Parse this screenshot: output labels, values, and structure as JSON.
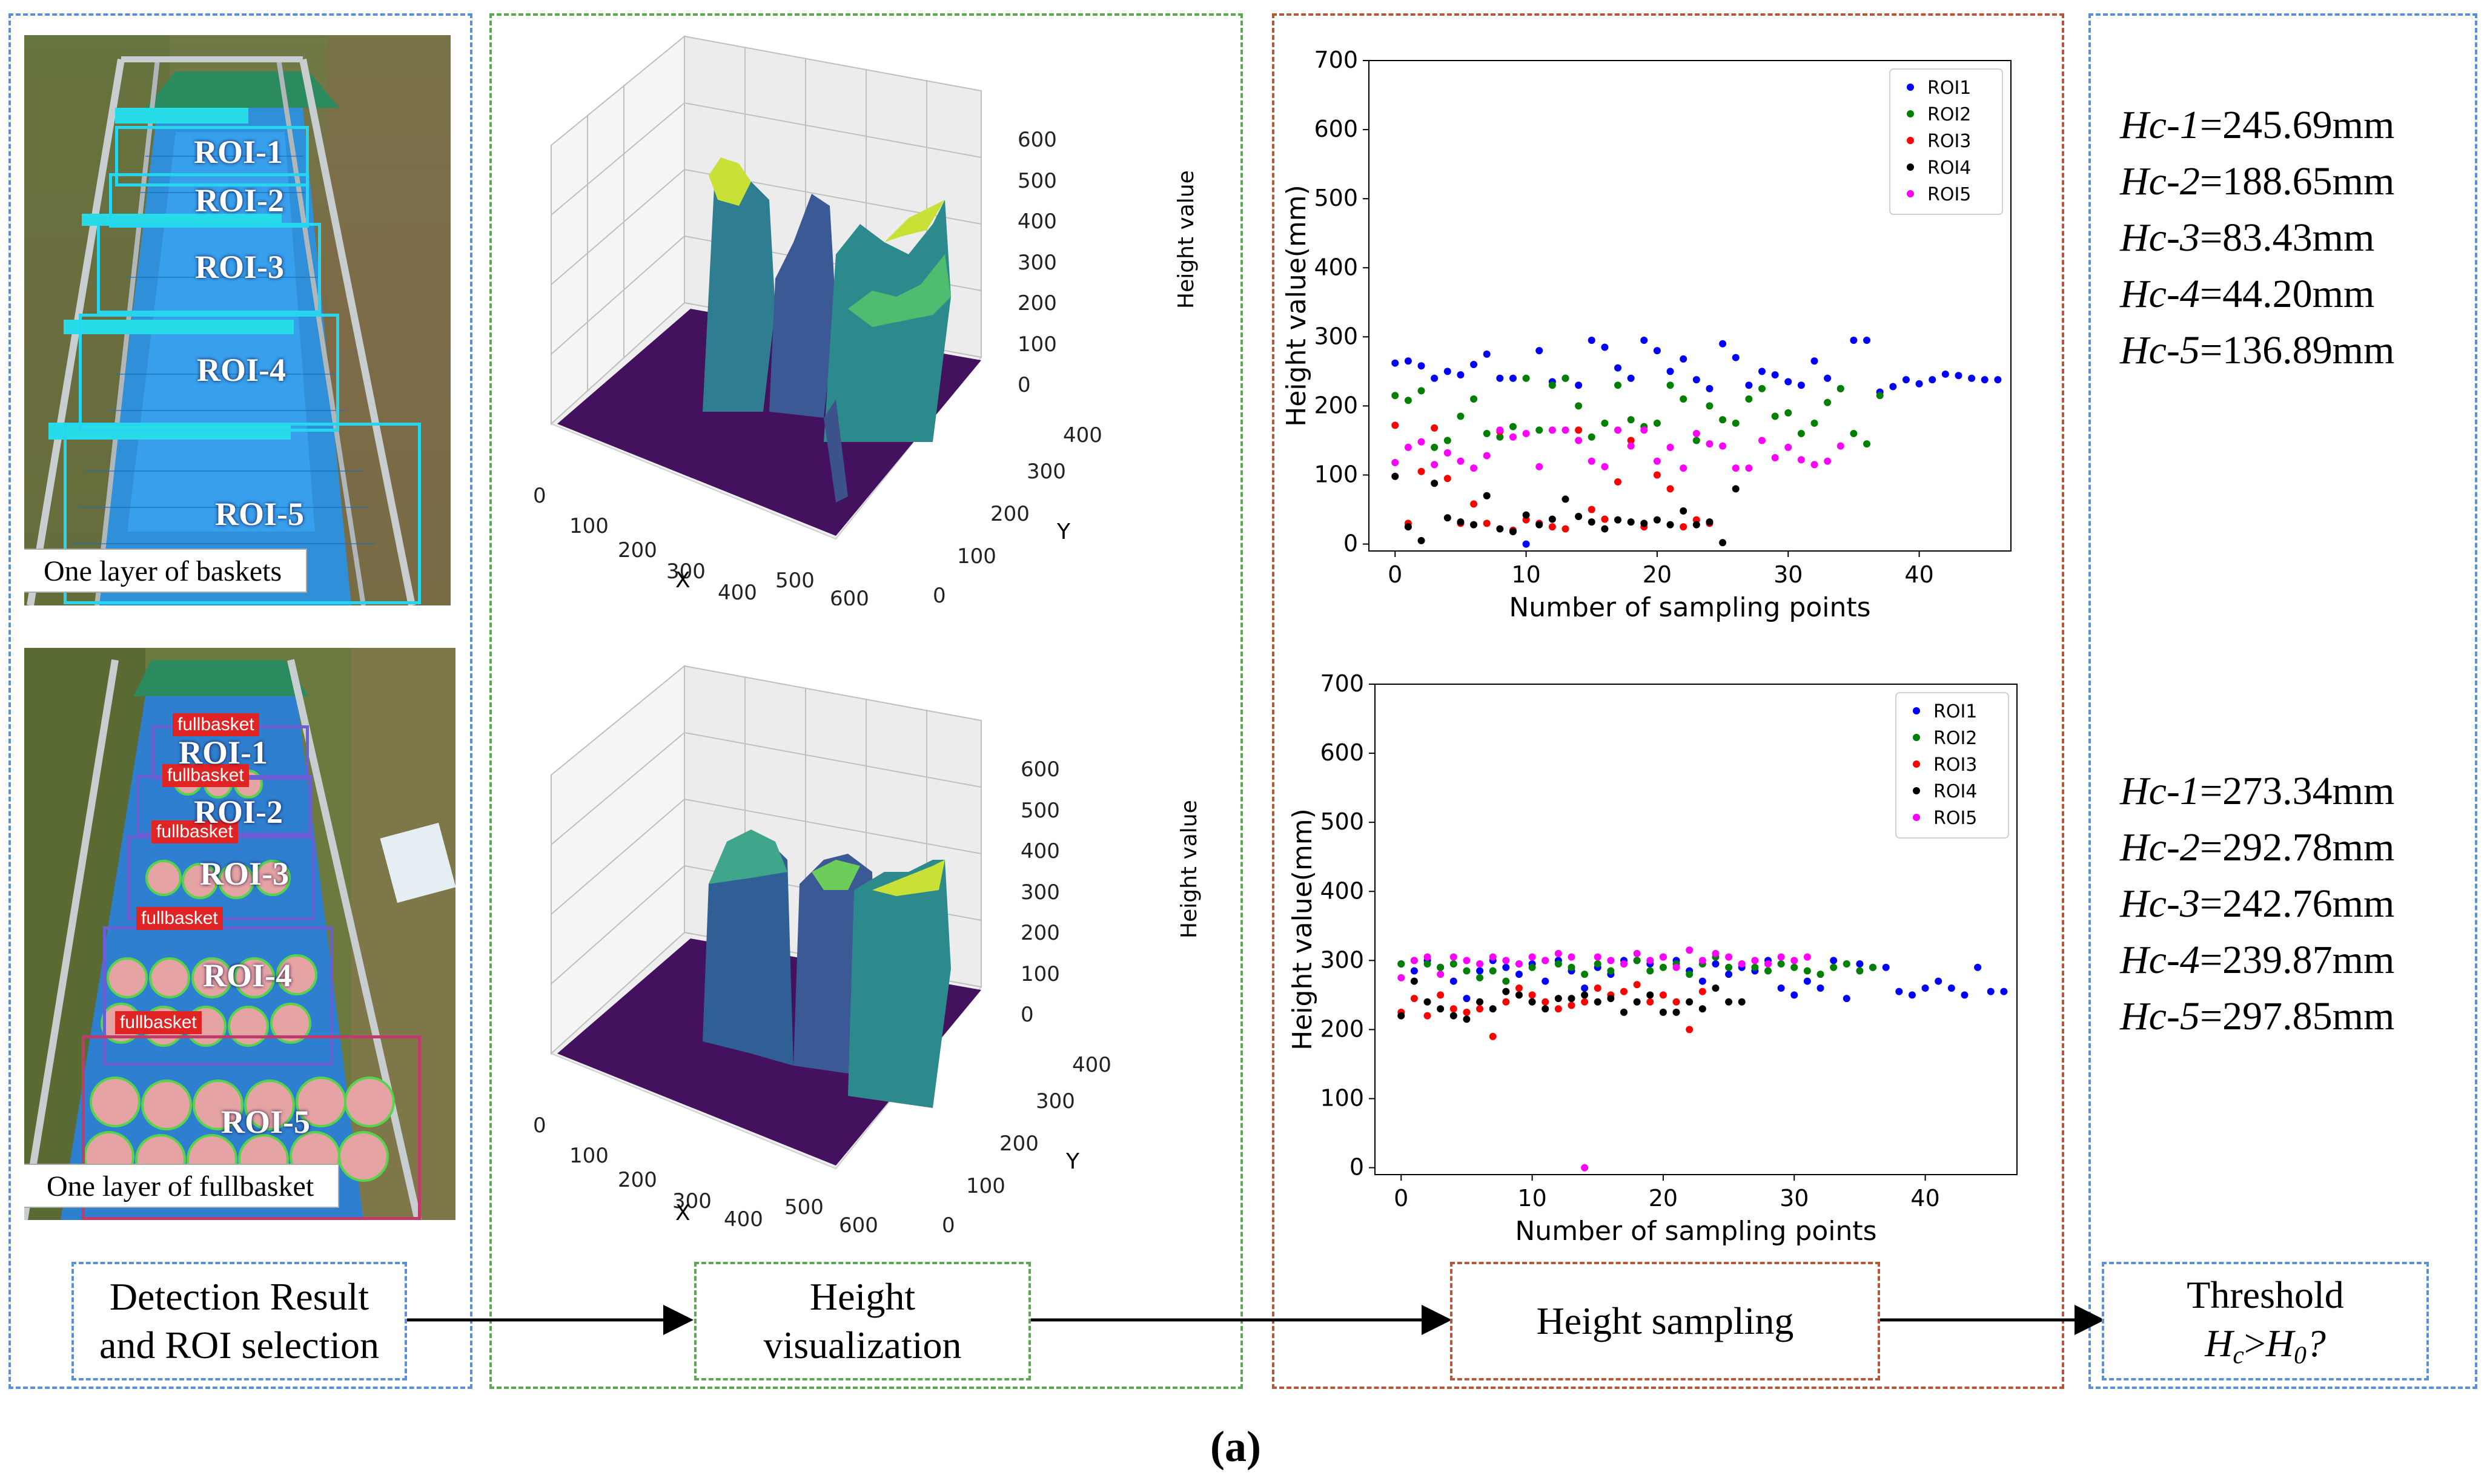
{
  "photos": {
    "top": {
      "rois": [
        "ROI-1",
        "ROI-2",
        "ROI-3",
        "ROI-4",
        "ROI-5"
      ],
      "caption": "One layer of baskets"
    },
    "bottom": {
      "rois": [
        "ROI-1",
        "ROI-2",
        "ROI-3",
        "ROI-4",
        "ROI-5"
      ],
      "tag": "fullbasket",
      "caption": "One layer of fullbasket"
    }
  },
  "surfaces": {
    "axis_x_label": "X",
    "axis_y_label": "Y",
    "axis_z_label": "Height value",
    "x_ticks": [
      "0",
      "100",
      "200",
      "300",
      "400",
      "500",
      "600"
    ],
    "y_ticks": [
      "0",
      "100",
      "200",
      "300",
      "400"
    ],
    "z_ticks": [
      "0",
      "100",
      "200",
      "300",
      "400",
      "500",
      "600"
    ]
  },
  "chart_data": [
    {
      "type": "scatter",
      "xlabel": "Number of sampling points",
      "ylabel": "Height value(mm)",
      "xlim": [
        -2,
        47
      ],
      "ylim": [
        -10,
        700
      ],
      "x_ticks": [
        0,
        10,
        20,
        30,
        40
      ],
      "y_ticks": [
        0,
        100,
        200,
        300,
        400,
        500,
        600,
        700
      ],
      "legend_position": "top-right",
      "series": [
        {
          "name": "ROI1",
          "color": "#0000ff",
          "x": [
            0,
            1,
            2,
            3,
            4,
            5,
            6,
            7,
            8,
            9,
            10,
            11,
            12,
            13,
            14,
            15,
            16,
            17,
            18,
            19,
            20,
            21,
            22,
            23,
            24,
            25,
            26,
            27,
            28,
            29,
            30,
            31,
            32,
            33,
            34,
            35,
            36,
            37,
            38,
            39,
            40,
            41,
            42,
            43,
            44,
            45,
            46
          ],
          "y": [
            262,
            265,
            258,
            240,
            250,
            245,
            260,
            275,
            240,
            240,
            0,
            280,
            235,
            240,
            230,
            295,
            285,
            255,
            240,
            295,
            280,
            250,
            268,
            238,
            225,
            290,
            270,
            230,
            250,
            245,
            235,
            230,
            265,
            240,
            225,
            295,
            295,
            220,
            228,
            238,
            232,
            238,
            246,
            244,
            240,
            238,
            238
          ]
        },
        {
          "name": "ROI2",
          "color": "#008000",
          "x": [
            0,
            1,
            2,
            3,
            4,
            5,
            6,
            7,
            8,
            9,
            10,
            11,
            12,
            13,
            14,
            15,
            16,
            17,
            18,
            19,
            20,
            21,
            22,
            23,
            24,
            25,
            26,
            27,
            28,
            29,
            30,
            31,
            32,
            33,
            34,
            35,
            36,
            37
          ],
          "y": [
            215,
            208,
            222,
            140,
            150,
            185,
            210,
            160,
            155,
            170,
            240,
            165,
            230,
            240,
            200,
            155,
            175,
            230,
            180,
            170,
            175,
            230,
            210,
            150,
            200,
            180,
            175,
            210,
            225,
            185,
            190,
            160,
            175,
            205,
            225,
            160,
            145,
            215
          ]
        },
        {
          "name": "ROI3",
          "color": "#ff0000",
          "x": [
            0,
            1,
            2,
            3,
            4,
            5,
            6,
            7,
            8,
            9,
            10,
            11,
            12,
            13,
            14,
            15,
            16,
            17,
            18,
            19,
            20,
            21,
            22,
            23,
            24
          ],
          "y": [
            172,
            30,
            105,
            168,
            95,
            30,
            58,
            30,
            163,
            20,
            35,
            30,
            25,
            22,
            165,
            50,
            36,
            90,
            150,
            25,
            100,
            80,
            25,
            35,
            30
          ]
        },
        {
          "name": "ROI4",
          "color": "#000000",
          "x": [
            0,
            1,
            2,
            3,
            4,
            5,
            6,
            7,
            8,
            9,
            10,
            11,
            12,
            13,
            14,
            15,
            16,
            17,
            18,
            19,
            20,
            21,
            22,
            23,
            24,
            25,
            26
          ],
          "y": [
            98,
            25,
            5,
            88,
            38,
            32,
            28,
            70,
            22,
            18,
            42,
            28,
            36,
            65,
            40,
            32,
            22,
            35,
            32,
            30,
            35,
            28,
            48,
            28,
            32,
            2,
            80
          ]
        },
        {
          "name": "ROI5",
          "color": "#ff00ff",
          "x": [
            0,
            1,
            2,
            3,
            4,
            5,
            6,
            7,
            8,
            9,
            10,
            11,
            12,
            13,
            14,
            15,
            16,
            17,
            18,
            19,
            20,
            21,
            22,
            23,
            24,
            25,
            26,
            27,
            28,
            29,
            30,
            31,
            32,
            33,
            34
          ],
          "y": [
            118,
            140,
            148,
            115,
            132,
            120,
            110,
            128,
            165,
            155,
            160,
            112,
            165,
            165,
            150,
            120,
            112,
            165,
            142,
            165,
            120,
            140,
            110,
            160,
            145,
            142,
            110,
            110,
            150,
            125,
            140,
            122,
            115,
            120,
            142
          ]
        }
      ]
    },
    {
      "type": "scatter",
      "xlabel": "Number of sampling points",
      "ylabel": "Height value(mm)",
      "xlim": [
        -2,
        47
      ],
      "ylim": [
        -10,
        700
      ],
      "x_ticks": [
        0,
        10,
        20,
        30,
        40
      ],
      "y_ticks": [
        0,
        100,
        200,
        300,
        400,
        500,
        600,
        700
      ],
      "legend_position": "top-right",
      "series": [
        {
          "name": "ROI1",
          "color": "#0000ff",
          "x": [
            0,
            1,
            2,
            3,
            4,
            5,
            6,
            7,
            8,
            9,
            10,
            11,
            12,
            13,
            14,
            15,
            16,
            17,
            18,
            19,
            20,
            21,
            22,
            23,
            24,
            25,
            26,
            27,
            28,
            29,
            30,
            31,
            32,
            33,
            34,
            35,
            36,
            37,
            38,
            39,
            40,
            41,
            42,
            43,
            44,
            45,
            46
          ],
          "y": [
            295,
            285,
            300,
            290,
            270,
            245,
            285,
            300,
            290,
            280,
            295,
            270,
            300,
            285,
            260,
            290,
            280,
            300,
            300,
            295,
            305,
            300,
            285,
            270,
            295,
            280,
            290,
            285,
            300,
            260,
            250,
            270,
            260,
            300,
            245,
            295,
            290,
            290,
            255,
            250,
            260,
            270,
            260,
            250,
            290,
            255,
            255
          ]
        },
        {
          "name": "ROI2",
          "color": "#008000",
          "x": [
            0,
            1,
            2,
            3,
            4,
            5,
            6,
            7,
            8,
            9,
            10,
            11,
            12,
            13,
            14,
            15,
            16,
            17,
            18,
            19,
            20,
            21,
            22,
            23,
            24,
            25,
            26,
            27,
            28,
            29,
            30,
            31,
            32,
            33,
            34,
            35,
            36
          ],
          "y": [
            295,
            300,
            295,
            290,
            295,
            285,
            275,
            285,
            270,
            295,
            290,
            300,
            295,
            290,
            280,
            295,
            285,
            295,
            300,
            285,
            290,
            295,
            280,
            295,
            305,
            290,
            295,
            290,
            285,
            295,
            290,
            285,
            280,
            290,
            295,
            285,
            290
          ]
        },
        {
          "name": "ROI3",
          "color": "#ff0000",
          "x": [
            0,
            1,
            2,
            3,
            4,
            5,
            6,
            7,
            8,
            9,
            10,
            11,
            12,
            13,
            14,
            15,
            16,
            17,
            18,
            19,
            20,
            21,
            22,
            23
          ],
          "y": [
            225,
            245,
            220,
            250,
            230,
            225,
            230,
            190,
            240,
            260,
            250,
            240,
            230,
            235,
            240,
            260,
            250,
            255,
            265,
            240,
            250,
            240,
            200,
            255
          ]
        },
        {
          "name": "ROI4",
          "color": "#000000",
          "x": [
            0,
            1,
            2,
            3,
            4,
            5,
            6,
            7,
            8,
            9,
            10,
            11,
            12,
            13,
            14,
            15,
            16,
            17,
            18,
            19,
            20,
            21,
            22,
            23,
            24,
            25,
            26
          ],
          "y": [
            220,
            270,
            240,
            230,
            220,
            215,
            240,
            230,
            255,
            250,
            240,
            230,
            245,
            245,
            250,
            240,
            245,
            225,
            240,
            250,
            225,
            225,
            240,
            230,
            260,
            240,
            240
          ]
        },
        {
          "name": "ROI5",
          "color": "#ff00ff",
          "x": [
            0,
            1,
            2,
            3,
            4,
            5,
            6,
            7,
            8,
            9,
            10,
            11,
            12,
            13,
            14,
            15,
            16,
            17,
            18,
            19,
            20,
            21,
            22,
            23,
            24,
            25,
            26,
            27,
            28,
            29,
            30,
            31
          ],
          "y": [
            275,
            300,
            305,
            280,
            305,
            300,
            295,
            305,
            300,
            295,
            305,
            300,
            310,
            305,
            0,
            305,
            300,
            295,
            310,
            300,
            305,
            290,
            315,
            300,
            310,
            305,
            295,
            300,
            295,
            305,
            300,
            305
          ]
        }
      ]
    }
  ],
  "hc_values_top": [
    {
      "name": "Hc-1",
      "value": "=245.69mm"
    },
    {
      "name": "Hc-2",
      "value": "=188.65mm"
    },
    {
      "name": "Hc-3",
      "value": "=83.43mm"
    },
    {
      "name": "Hc-4",
      "value": "=44.20mm"
    },
    {
      "name": "Hc-5",
      "value": "=136.89mm"
    }
  ],
  "hc_values_bottom": [
    {
      "name": "Hc-1",
      "value": "=273.34mm"
    },
    {
      "name": "Hc-2",
      "value": "=292.78mm"
    },
    {
      "name": "Hc-3",
      "value": "=242.76mm"
    },
    {
      "name": "Hc-4",
      "value": "=239.87mm"
    },
    {
      "name": "Hc-5",
      "value": "=297.85mm"
    }
  ],
  "stages": {
    "detection_line1": "Detection Result",
    "detection_line2": "and ROI selection",
    "height_vis_line1": "Height",
    "height_vis_line2": "visualization",
    "height_sampling": "Height sampling",
    "threshold_line1": "Threshold",
    "threshold_h": "H",
    "threshold_c": "c",
    "threshold_gt": ">",
    "threshold_0": "0",
    "threshold_q": "?"
  },
  "panel_label": "(a)",
  "colors": {
    "blue_dash": "#5b8fd6",
    "green_dash": "#5aa84f",
    "brown_dash": "#b5583a",
    "roi_cyan": "#25d6ee",
    "fullbasket_red": "#e02424",
    "surface_base": "#44115e"
  }
}
